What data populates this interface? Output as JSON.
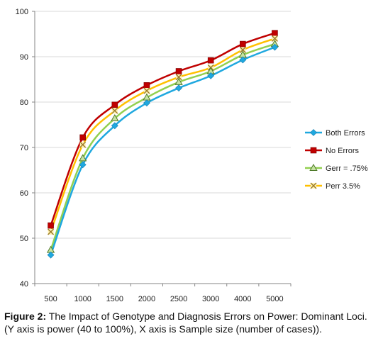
{
  "chart_data": {
    "type": "line",
    "categories": [
      "500",
      "1000",
      "1500",
      "2000",
      "2500",
      "3000",
      "4000",
      "5000"
    ],
    "ylim": [
      40,
      100
    ],
    "yticks": [
      "40",
      "50",
      "60",
      "70",
      "80",
      "90",
      "100"
    ],
    "grid": "horizontal",
    "legend_position": "right",
    "series": [
      {
        "name": "Both Errors",
        "color": "#1fa8df",
        "marker": "diamond",
        "values": [
          46.3,
          66.2,
          74.8,
          79.8,
          83.1,
          85.8,
          89.3,
          92.1
        ]
      },
      {
        "name": "No Errors",
        "color": "#c00000",
        "marker": "square",
        "values": [
          52.8,
          72.2,
          79.4,
          83.7,
          86.8,
          89.2,
          92.8,
          95.2
        ]
      },
      {
        "name": "Gerr = .75%",
        "color": "#92d050",
        "marker": "triangle",
        "values": [
          47.4,
          67.6,
          76.4,
          81.0,
          84.4,
          86.8,
          90.4,
          92.8
        ]
      },
      {
        "name": "Perr 3.5%",
        "color": "#ffc000",
        "marker": "x",
        "values": [
          51.4,
          70.6,
          78.1,
          82.5,
          85.5,
          87.6,
          91.5,
          94.0
        ]
      }
    ]
  },
  "caption": {
    "label": "Figure 2:",
    "text": " The Impact of Genotype and Diagnosis Errors on Power: Dominant Loci. (Y axis is power (40 to 100%), X axis is Sample size (number of cases))."
  }
}
